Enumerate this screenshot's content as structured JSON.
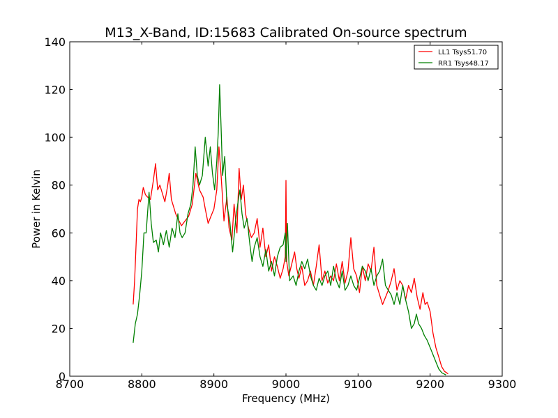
{
  "chart_data": {
    "type": "line",
    "title": "M13_X-Band, ID:15683 Calibrated On-source spectrum",
    "xlabel": "Frequency (MHz)",
    "ylabel": "Power in Kelvin",
    "xlim": [
      8700,
      9300
    ],
    "ylim": [
      0,
      140
    ],
    "xticks": [
      8700,
      8800,
      8900,
      9000,
      9100,
      9200,
      9300
    ],
    "yticks": [
      0,
      20,
      40,
      60,
      80,
      100,
      120,
      140
    ],
    "grid": false,
    "legend_position": "top-right",
    "series": [
      {
        "name": "LL1 Tsys51.70",
        "color": "#ff0000",
        "points": [
          [
            8788,
            30
          ],
          [
            8790,
            40
          ],
          [
            8792,
            55
          ],
          [
            8794,
            70
          ],
          [
            8796,
            74
          ],
          [
            8798,
            73
          ],
          [
            8800,
            75
          ],
          [
            8802,
            79
          ],
          [
            8805,
            76
          ],
          [
            8808,
            75
          ],
          [
            8812,
            74
          ],
          [
            8816,
            82
          ],
          [
            8819,
            89
          ],
          [
            8822,
            78
          ],
          [
            8825,
            80
          ],
          [
            8828,
            77
          ],
          [
            8832,
            73
          ],
          [
            8836,
            80
          ],
          [
            8838,
            85
          ],
          [
            8841,
            74
          ],
          [
            8844,
            71
          ],
          [
            8847,
            68
          ],
          [
            8850,
            66
          ],
          [
            8855,
            63
          ],
          [
            8860,
            65
          ],
          [
            8865,
            67
          ],
          [
            8870,
            72
          ],
          [
            8875,
            85
          ],
          [
            8880,
            78
          ],
          [
            8885,
            75
          ],
          [
            8888,
            70
          ],
          [
            8892,
            64
          ],
          [
            8896,
            67
          ],
          [
            8900,
            70
          ],
          [
            8904,
            78
          ],
          [
            8907,
            96
          ],
          [
            8910,
            84
          ],
          [
            8914,
            65
          ],
          [
            8918,
            75
          ],
          [
            8921,
            62
          ],
          [
            8925,
            57
          ],
          [
            8928,
            72
          ],
          [
            8932,
            60
          ],
          [
            8935,
            87
          ],
          [
            8938,
            74
          ],
          [
            8941,
            80
          ],
          [
            8944,
            68
          ],
          [
            8948,
            62
          ],
          [
            8952,
            58
          ],
          [
            8956,
            60
          ],
          [
            8960,
            66
          ],
          [
            8964,
            54
          ],
          [
            8968,
            62
          ],
          [
            8972,
            50
          ],
          [
            8976,
            55
          ],
          [
            8980,
            44
          ],
          [
            8984,
            50
          ],
          [
            8988,
            46
          ],
          [
            8992,
            41
          ],
          [
            8996,
            45
          ],
          [
            8999,
            50
          ],
          [
            9000,
            82
          ],
          [
            9001,
            48
          ],
          [
            9004,
            42
          ],
          [
            9008,
            47
          ],
          [
            9012,
            52
          ],
          [
            9015,
            45
          ],
          [
            9018,
            41
          ],
          [
            9022,
            46
          ],
          [
            9026,
            38
          ],
          [
            9030,
            40
          ],
          [
            9034,
            44
          ],
          [
            9038,
            38
          ],
          [
            9042,
            46
          ],
          [
            9046,
            55
          ],
          [
            9050,
            40
          ],
          [
            9054,
            44
          ],
          [
            9058,
            39
          ],
          [
            9062,
            42
          ],
          [
            9066,
            40
          ],
          [
            9070,
            47
          ],
          [
            9074,
            40
          ],
          [
            9078,
            48
          ],
          [
            9082,
            39
          ],
          [
            9086,
            44
          ],
          [
            9090,
            58
          ],
          [
            9094,
            45
          ],
          [
            9098,
            42
          ],
          [
            9102,
            35
          ],
          [
            9106,
            46
          ],
          [
            9110,
            40
          ],
          [
            9114,
            47
          ],
          [
            9118,
            44
          ],
          [
            9122,
            54
          ],
          [
            9126,
            38
          ],
          [
            9130,
            34
          ],
          [
            9134,
            30
          ],
          [
            9138,
            33
          ],
          [
            9142,
            36
          ],
          [
            9146,
            40
          ],
          [
            9150,
            45
          ],
          [
            9154,
            36
          ],
          [
            9158,
            40
          ],
          [
            9162,
            38
          ],
          [
            9166,
            32
          ],
          [
            9170,
            38
          ],
          [
            9174,
            35
          ],
          [
            9178,
            41
          ],
          [
            9182,
            33
          ],
          [
            9186,
            28
          ],
          [
            9190,
            35
          ],
          [
            9193,
            30
          ],
          [
            9196,
            31
          ],
          [
            9200,
            27
          ],
          [
            9204,
            18
          ],
          [
            9208,
            12
          ],
          [
            9212,
            8
          ],
          [
            9216,
            4
          ],
          [
            9220,
            2
          ],
          [
            9225,
            1
          ]
        ]
      },
      {
        "name": "RR1 Tsys48.17",
        "color": "#008000",
        "points": [
          [
            8788,
            14
          ],
          [
            8791,
            22
          ],
          [
            8794,
            26
          ],
          [
            8797,
            34
          ],
          [
            8800,
            44
          ],
          [
            8803,
            60
          ],
          [
            8806,
            60
          ],
          [
            8810,
            77
          ],
          [
            8813,
            64
          ],
          [
            8816,
            56
          ],
          [
            8820,
            57
          ],
          [
            8823,
            52
          ],
          [
            8826,
            60
          ],
          [
            8830,
            55
          ],
          [
            8834,
            61
          ],
          [
            8838,
            54
          ],
          [
            8842,
            62
          ],
          [
            8846,
            58
          ],
          [
            8850,
            68
          ],
          [
            8853,
            60
          ],
          [
            8856,
            58
          ],
          [
            8860,
            60
          ],
          [
            8864,
            68
          ],
          [
            8868,
            72
          ],
          [
            8871,
            80
          ],
          [
            8874,
            96
          ],
          [
            8877,
            84
          ],
          [
            8880,
            80
          ],
          [
            8884,
            84
          ],
          [
            8888,
            100
          ],
          [
            8892,
            88
          ],
          [
            8895,
            96
          ],
          [
            8898,
            85
          ],
          [
            8901,
            78
          ],
          [
            8904,
            90
          ],
          [
            8906,
            102
          ],
          [
            8908,
            122
          ],
          [
            8910,
            104
          ],
          [
            8912,
            84
          ],
          [
            8915,
            92
          ],
          [
            8918,
            72
          ],
          [
            8922,
            65
          ],
          [
            8926,
            52
          ],
          [
            8930,
            65
          ],
          [
            8933,
            72
          ],
          [
            8936,
            78
          ],
          [
            8939,
            68
          ],
          [
            8942,
            62
          ],
          [
            8946,
            66
          ],
          [
            8950,
            55
          ],
          [
            8953,
            48
          ],
          [
            8956,
            54
          ],
          [
            8960,
            58
          ],
          [
            8964,
            50
          ],
          [
            8968,
            46
          ],
          [
            8972,
            53
          ],
          [
            8976,
            44
          ],
          [
            8980,
            48
          ],
          [
            8984,
            42
          ],
          [
            8988,
            50
          ],
          [
            8992,
            54
          ],
          [
            8996,
            55
          ],
          [
            8999,
            60
          ],
          [
            9000,
            48
          ],
          [
            9002,
            64
          ],
          [
            9005,
            40
          ],
          [
            9010,
            42
          ],
          [
            9014,
            38
          ],
          [
            9018,
            44
          ],
          [
            9022,
            48
          ],
          [
            9026,
            45
          ],
          [
            9030,
            49
          ],
          [
            9034,
            42
          ],
          [
            9038,
            38
          ],
          [
            9042,
            36
          ],
          [
            9046,
            41
          ],
          [
            9050,
            38
          ],
          [
            9054,
            42
          ],
          [
            9058,
            44
          ],
          [
            9062,
            38
          ],
          [
            9066,
            46
          ],
          [
            9070,
            40
          ],
          [
            9074,
            37
          ],
          [
            9078,
            44
          ],
          [
            9082,
            36
          ],
          [
            9086,
            38
          ],
          [
            9090,
            42
          ],
          [
            9094,
            38
          ],
          [
            9098,
            36
          ],
          [
            9102,
            41
          ],
          [
            9106,
            46
          ],
          [
            9110,
            44
          ],
          [
            9114,
            40
          ],
          [
            9118,
            45
          ],
          [
            9122,
            38
          ],
          [
            9126,
            42
          ],
          [
            9130,
            44
          ],
          [
            9134,
            49
          ],
          [
            9138,
            38
          ],
          [
            9142,
            36
          ],
          [
            9146,
            34
          ],
          [
            9150,
            30
          ],
          [
            9154,
            35
          ],
          [
            9158,
            30
          ],
          [
            9162,
            38
          ],
          [
            9166,
            32
          ],
          [
            9170,
            27
          ],
          [
            9174,
            20
          ],
          [
            9178,
            22
          ],
          [
            9181,
            26
          ],
          [
            9184,
            22
          ],
          [
            9188,
            20
          ],
          [
            9192,
            17
          ],
          [
            9196,
            15
          ],
          [
            9200,
            12
          ],
          [
            9204,
            9
          ],
          [
            9208,
            6
          ],
          [
            9212,
            3
          ],
          [
            9216,
            1.5
          ],
          [
            9222,
            0.5
          ]
        ]
      }
    ]
  }
}
